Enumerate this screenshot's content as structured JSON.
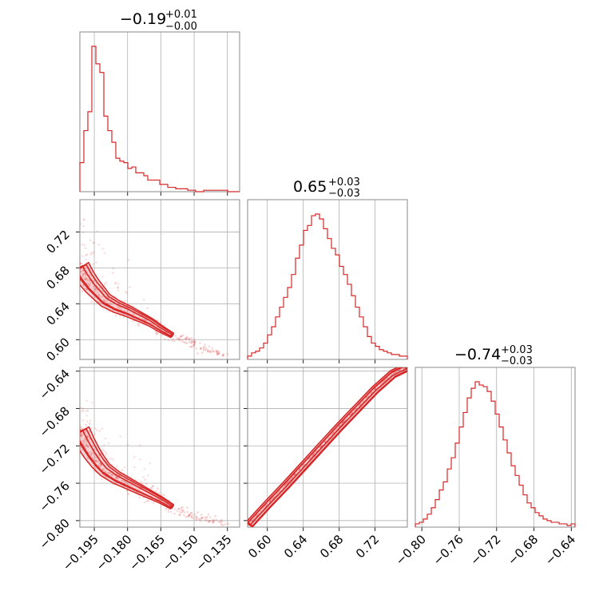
{
  "chart_data": {
    "type": "corner",
    "color": "#d62728",
    "grid": true,
    "parameters": [
      {
        "median": "−0.19",
        "plus": "+0.01",
        "minus": "−0.00",
        "range": [
          -0.2015,
          -0.1295
        ],
        "ticks": [
          -0.195,
          -0.18,
          -0.165,
          -0.15,
          -0.135
        ],
        "tick_labels": [
          "−0.195",
          "−0.180",
          "−0.165",
          "−0.150",
          "−0.135"
        ]
      },
      {
        "median": "0.65",
        "plus": "+0.03",
        "minus": "−0.03",
        "range": [
          0.578,
          0.756
        ],
        "ticks": [
          0.6,
          0.64,
          0.68,
          0.72
        ],
        "tick_labels": [
          "0.60",
          "0.64",
          "0.68",
          "0.72"
        ]
      },
      {
        "median": "−0.74",
        "plus": "+0.03",
        "minus": "−0.03",
        "range": [
          -0.807,
          -0.636
        ],
        "ticks": [
          -0.8,
          -0.76,
          -0.72,
          -0.68,
          -0.64
        ],
        "tick_labels": [
          "−0.80",
          "−0.76",
          "−0.72",
          "−0.68",
          "−0.64"
        ]
      }
    ],
    "histograms": [
      {
        "param": 0,
        "bin_start": -0.2015,
        "bin_width": 0.0018,
        "counts": [
          20,
          42,
          55,
          100,
          88,
          82,
          52,
          42,
          34,
          23,
          21,
          20,
          16,
          17,
          13,
          13,
          11,
          8,
          8,
          8,
          5,
          5,
          3,
          3,
          2,
          2,
          2,
          1,
          1,
          0,
          0,
          1,
          1,
          1,
          1,
          1,
          1,
          0,
          0,
          0
        ]
      },
      {
        "param": 1,
        "bin_start": 0.578,
        "bin_width": 0.00445,
        "counts": [
          2,
          4,
          5,
          7,
          10,
          15,
          20,
          26,
          32,
          38,
          44,
          52,
          62,
          70,
          79,
          82,
          88,
          89,
          86,
          80,
          74,
          68,
          64,
          57,
          52,
          46,
          39,
          32,
          26,
          20,
          14,
          10,
          8,
          6,
          5,
          4,
          3,
          3,
          2,
          2
        ]
      },
      {
        "param": 2,
        "bin_start": -0.807,
        "bin_width": 0.004275,
        "counts": [
          2,
          3,
          5,
          8,
          12,
          17,
          23,
          28,
          36,
          43,
          52,
          62,
          71,
          80,
          86,
          90,
          88,
          87,
          84,
          78,
          70,
          62,
          54,
          46,
          38,
          32,
          26,
          20,
          15,
          12,
          9,
          7,
          5,
          4,
          3,
          3,
          2,
          2,
          1,
          2
        ]
      }
    ],
    "contour_pairs": [
      {
        "x_param": 0,
        "y_param": 1,
        "ridge": [
          [
            -0.2015,
            0.68
          ],
          [
            -0.199,
            0.67
          ],
          [
            -0.196,
            0.66
          ],
          [
            -0.193,
            0.652
          ],
          [
            -0.19,
            0.644
          ],
          [
            -0.185,
            0.637
          ],
          [
            -0.18,
            0.632
          ],
          [
            -0.175,
            0.626
          ],
          [
            -0.17,
            0.62
          ],
          [
            -0.165,
            0.612
          ],
          [
            -0.16,
            0.605
          ],
          [
            -0.155,
            0.6
          ],
          [
            -0.15,
            0.595
          ],
          [
            -0.145,
            0.59
          ],
          [
            -0.14,
            0.586
          ],
          [
            -0.135,
            0.582
          ]
        ]
      },
      {
        "x_param": 0,
        "y_param": 2,
        "ridge": [
          [
            -0.2015,
            -0.705
          ],
          [
            -0.199,
            -0.716
          ],
          [
            -0.196,
            -0.728
          ],
          [
            -0.193,
            -0.738
          ],
          [
            -0.19,
            -0.746
          ],
          [
            -0.185,
            -0.754
          ],
          [
            -0.18,
            -0.76
          ],
          [
            -0.175,
            -0.766
          ],
          [
            -0.17,
            -0.772
          ],
          [
            -0.165,
            -0.778
          ],
          [
            -0.16,
            -0.785
          ],
          [
            -0.155,
            -0.79
          ],
          [
            -0.15,
            -0.794
          ],
          [
            -0.145,
            -0.798
          ],
          [
            -0.14,
            -0.801
          ],
          [
            -0.135,
            -0.804
          ]
        ]
      },
      {
        "x_param": 1,
        "y_param": 2,
        "ridge": [
          [
            0.58,
            -0.804
          ],
          [
            0.6,
            -0.783
          ],
          [
            0.62,
            -0.763
          ],
          [
            0.64,
            -0.742
          ],
          [
            0.66,
            -0.721
          ],
          [
            0.68,
            -0.7
          ],
          [
            0.7,
            -0.68
          ],
          [
            0.72,
            -0.66
          ],
          [
            0.74,
            -0.643
          ],
          [
            0.755,
            -0.636
          ]
        ]
      }
    ]
  }
}
